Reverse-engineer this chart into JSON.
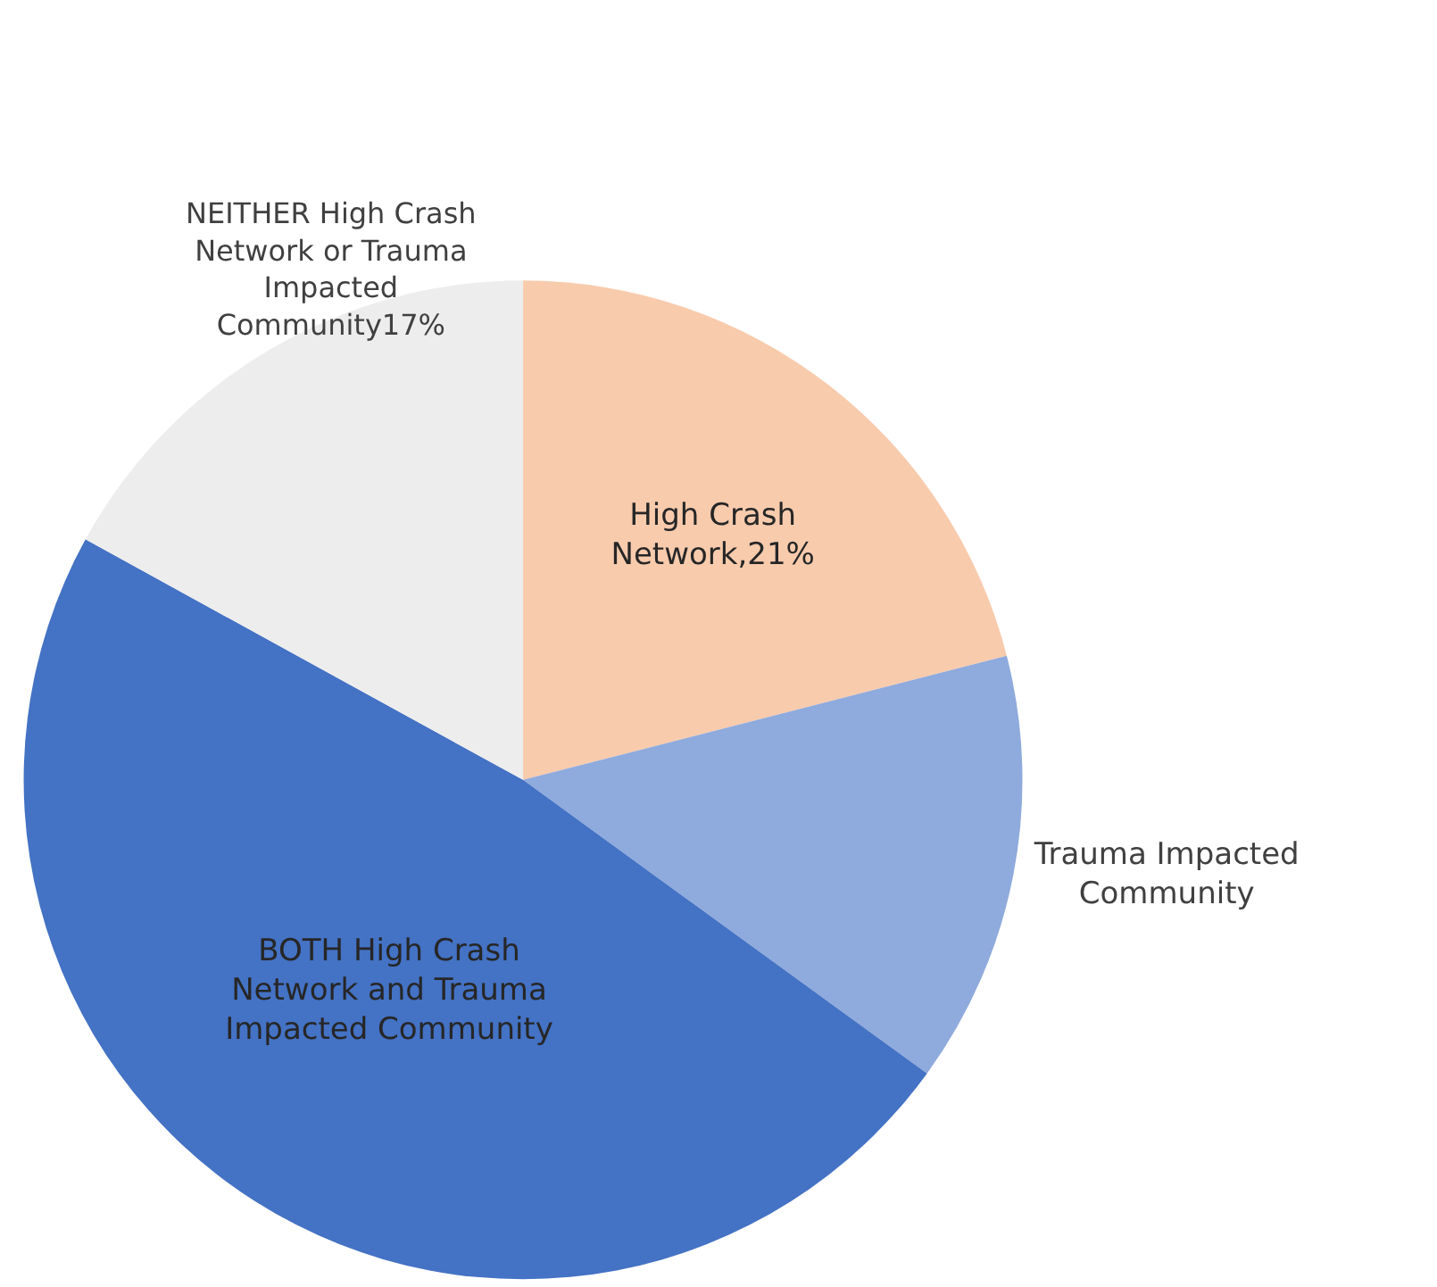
{
  "chart_data": {
    "type": "pie",
    "categories": [
      "High Crash Network",
      "Trauma Impacted Community",
      "BOTH High Crash Network and Trauma Impacted Community",
      "NEITHER High Crash Network or Trauma Impacted Community"
    ],
    "values": [
      21,
      14,
      48,
      17
    ],
    "value_labels": [
      ",21%",
      null,
      null,
      "17%"
    ],
    "colors": [
      "#f8cbad",
      "#8faadc",
      "#4472c4",
      "#ededed"
    ]
  }
}
